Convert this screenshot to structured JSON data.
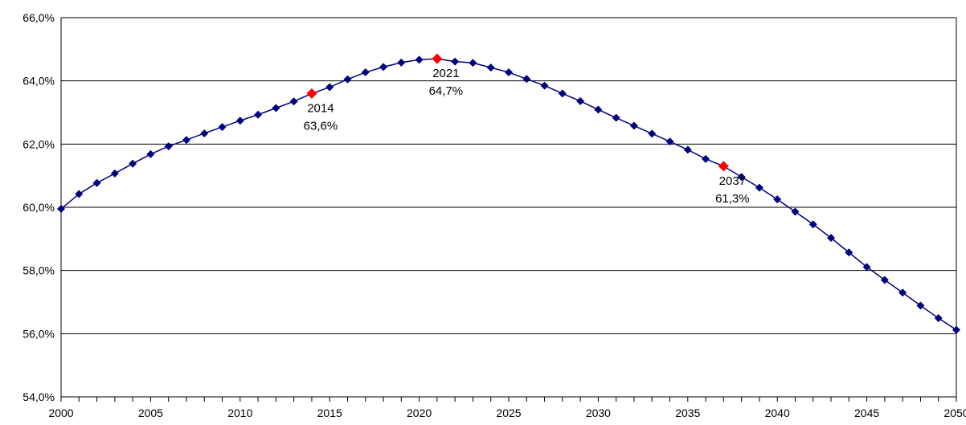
{
  "chart_data": {
    "type": "line",
    "title": "",
    "xlabel": "",
    "ylabel": "",
    "xlim": [
      2000,
      2050
    ],
    "ylim": [
      54.0,
      66.0
    ],
    "x_ticks": [
      "2000",
      "2005",
      "2010",
      "2015",
      "2020",
      "2025",
      "2030",
      "2035",
      "2040",
      "2045",
      "2050"
    ],
    "y_ticks": [
      "54,0%",
      "56,0%",
      "58,0%",
      "60,0%",
      "62,0%",
      "64,0%",
      "66,0%"
    ],
    "grid": true,
    "legend": "none",
    "series": [
      {
        "color": "#000080",
        "marker": "diamond",
        "x": [
          2000,
          2001,
          2002,
          2003,
          2004,
          2005,
          2006,
          2007,
          2008,
          2009,
          2010,
          2011,
          2012,
          2013,
          2014,
          2015,
          2016,
          2017,
          2018,
          2019,
          2020,
          2021,
          2022,
          2023,
          2024,
          2025,
          2026,
          2027,
          2028,
          2029,
          2030,
          2031,
          2032,
          2033,
          2034,
          2035,
          2036,
          2037,
          2038,
          2039,
          2040,
          2041,
          2042,
          2043,
          2044,
          2045,
          2046,
          2047,
          2048,
          2049,
          2050
        ],
        "values": [
          59.95,
          60.42,
          60.77,
          61.07,
          61.38,
          61.68,
          61.93,
          62.13,
          62.34,
          62.54,
          62.74,
          62.93,
          63.14,
          63.35,
          63.6,
          63.8,
          64.05,
          64.27,
          64.44,
          64.58,
          64.67,
          64.7,
          64.61,
          64.57,
          64.42,
          64.27,
          64.06,
          63.85,
          63.6,
          63.36,
          63.09,
          62.83,
          62.58,
          62.33,
          62.08,
          61.82,
          61.53,
          61.3,
          60.96,
          60.62,
          60.25,
          59.86,
          59.46,
          59.03,
          58.57,
          58.11,
          57.7,
          57.3,
          56.89,
          56.49,
          56.12
        ]
      }
    ],
    "highlights": [
      {
        "x": 2014,
        "value": 63.6,
        "color": "#ff0000",
        "year_label": "2014",
        "value_label": "63,6%"
      },
      {
        "x": 2021,
        "value": 64.7,
        "color": "#ff0000",
        "year_label": "2021",
        "value_label": "64,7%"
      },
      {
        "x": 2037,
        "value": 61.3,
        "color": "#ff0000",
        "year_label": "2037",
        "value_label": "61,3%"
      }
    ]
  }
}
